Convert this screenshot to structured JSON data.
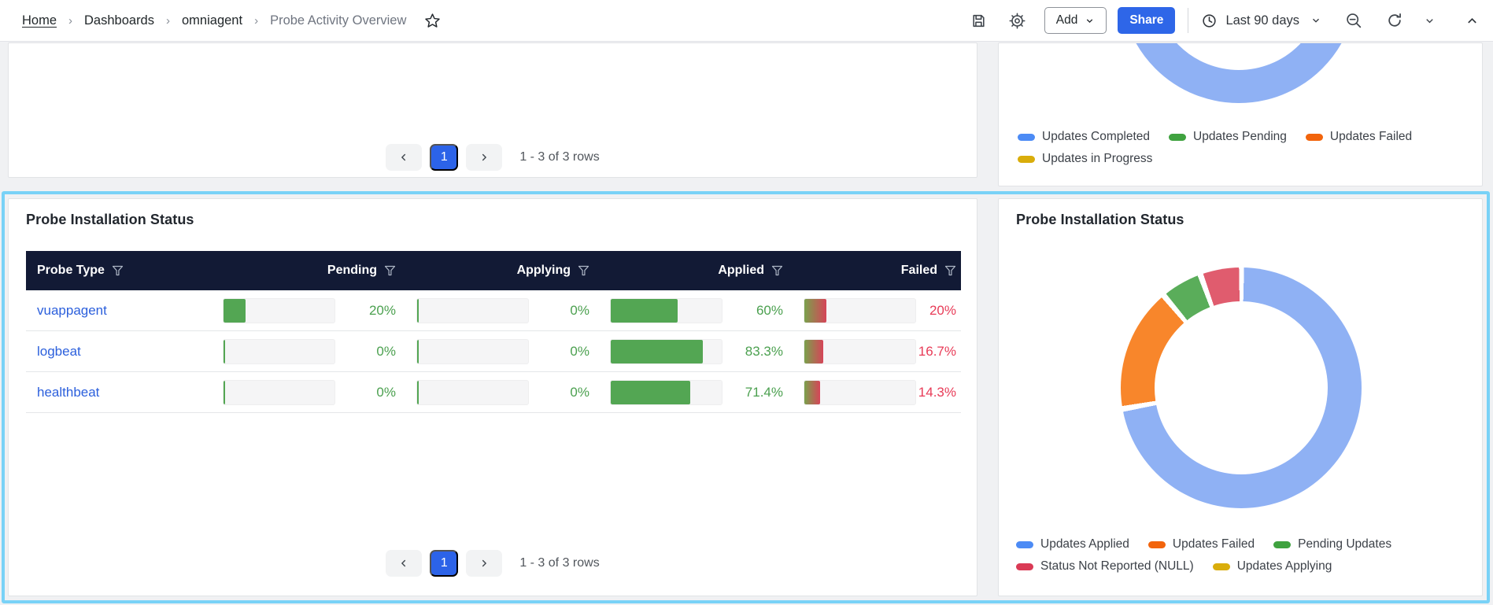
{
  "breadcrumb": {
    "items": [
      "Home",
      "Dashboards",
      "omniagent"
    ],
    "current": "Probe Activity Overview"
  },
  "toolbar": {
    "add_label": "Add",
    "share_label": "Share",
    "time_range": "Last 90 days"
  },
  "top_left_panel": {
    "pagination": {
      "current_page": "1",
      "range_text": "1 - 3 of 3 rows"
    }
  },
  "top_right_panel": {
    "legend_rows": [
      [
        {
          "label": "Updates Completed",
          "color": "#4c8bf5"
        },
        {
          "label": "Updates Pending",
          "color": "#3fa23f"
        },
        {
          "label": "Updates Failed",
          "color": "#f2640c"
        }
      ],
      [
        {
          "label": "Updates in Progress",
          "color": "#d9ad0b"
        }
      ]
    ]
  },
  "table_panel": {
    "title": "Probe Installation Status",
    "columns": [
      "Probe Type",
      "Pending",
      "Applying",
      "Applied",
      "Failed"
    ],
    "rows": [
      {
        "probe_type": "vuappagent",
        "pending": "20%",
        "applying": "0%",
        "applied": "60%",
        "failed": "20%"
      },
      {
        "probe_type": "logbeat",
        "pending": "0%",
        "applying": "0%",
        "applied": "83.3%",
        "failed": "16.7%"
      },
      {
        "probe_type": "healthbeat",
        "pending": "0%",
        "applying": "0%",
        "applied": "71.4%",
        "failed": "14.3%"
      }
    ],
    "pagination": {
      "current_page": "1",
      "range_text": "1 - 3 of 3 rows"
    }
  },
  "donut_panel": {
    "title": "Probe Installation Status",
    "legend_rows": [
      [
        {
          "label": "Updates Applied",
          "color": "#4c8bf5"
        },
        {
          "label": "Updates Failed",
          "color": "#f2640c"
        },
        {
          "label": "Pending Updates",
          "color": "#3fa23f"
        }
      ],
      [
        {
          "label": "Status Not Reported (NULL)",
          "color": "#da3a55"
        },
        {
          "label": "Updates Applying",
          "color": "#d9ad0b"
        }
      ]
    ]
  },
  "chart_data": [
    {
      "id": "updates-overview-donut",
      "type": "pie",
      "note": "donut chart clipped at top of viewport; only blue arc visible",
      "values_visible": false,
      "legend": [
        "Updates Completed",
        "Updates Pending",
        "Updates Failed",
        "Updates in Progress"
      ],
      "legend_colors": [
        "#4c8bf5",
        "#3fa23f",
        "#f2640c",
        "#d9ad0b"
      ],
      "visible_arc_color": "#8fb1f4",
      "legend_position": "bottom"
    },
    {
      "id": "probe-installation-donut",
      "type": "pie",
      "title": "Probe Installation Status",
      "labels": [
        "Updates Applied",
        "Updates Failed",
        "Pending Updates",
        "Status Not Reported (NULL)",
        "Updates Applying"
      ],
      "values_percent_estimated": [
        72.2,
        16.7,
        5.6,
        5.6,
        0
      ],
      "segment_colors": [
        "#8fb1f4",
        "#f8862b",
        "#5aad5a",
        "#e05c6e",
        "#e3c52e"
      ],
      "legend_colors": [
        "#4c8bf5",
        "#f2640c",
        "#3fa23f",
        "#da3a55",
        "#d9ad0b"
      ],
      "legend_position": "bottom",
      "start_angle_deg": 0,
      "direction": "clockwise"
    }
  ],
  "table_chart_data": {
    "type": "table",
    "columns": [
      "Probe Type",
      "Pending",
      "Applying",
      "Applied",
      "Failed"
    ],
    "rows_numeric": [
      [
        "vuappagent",
        20,
        0,
        60,
        20
      ],
      [
        "logbeat",
        0,
        0,
        83.3,
        16.7
      ],
      [
        "healthbeat",
        0,
        0,
        71.4,
        14.3
      ]
    ]
  },
  "colors": {
    "highlight_border": "#79d2f7",
    "table_header_bg": "#121a35",
    "link_blue": "#2b5fdc",
    "positive_green": "#4ba04f",
    "negative_red": "#e83b57",
    "bar_green": "#53a653",
    "failed_bar_gradient": [
      "#7aa14c",
      "#d64458"
    ],
    "share_button_blue": "#2e66e8",
    "active_page_blue": "#2c63e8"
  }
}
